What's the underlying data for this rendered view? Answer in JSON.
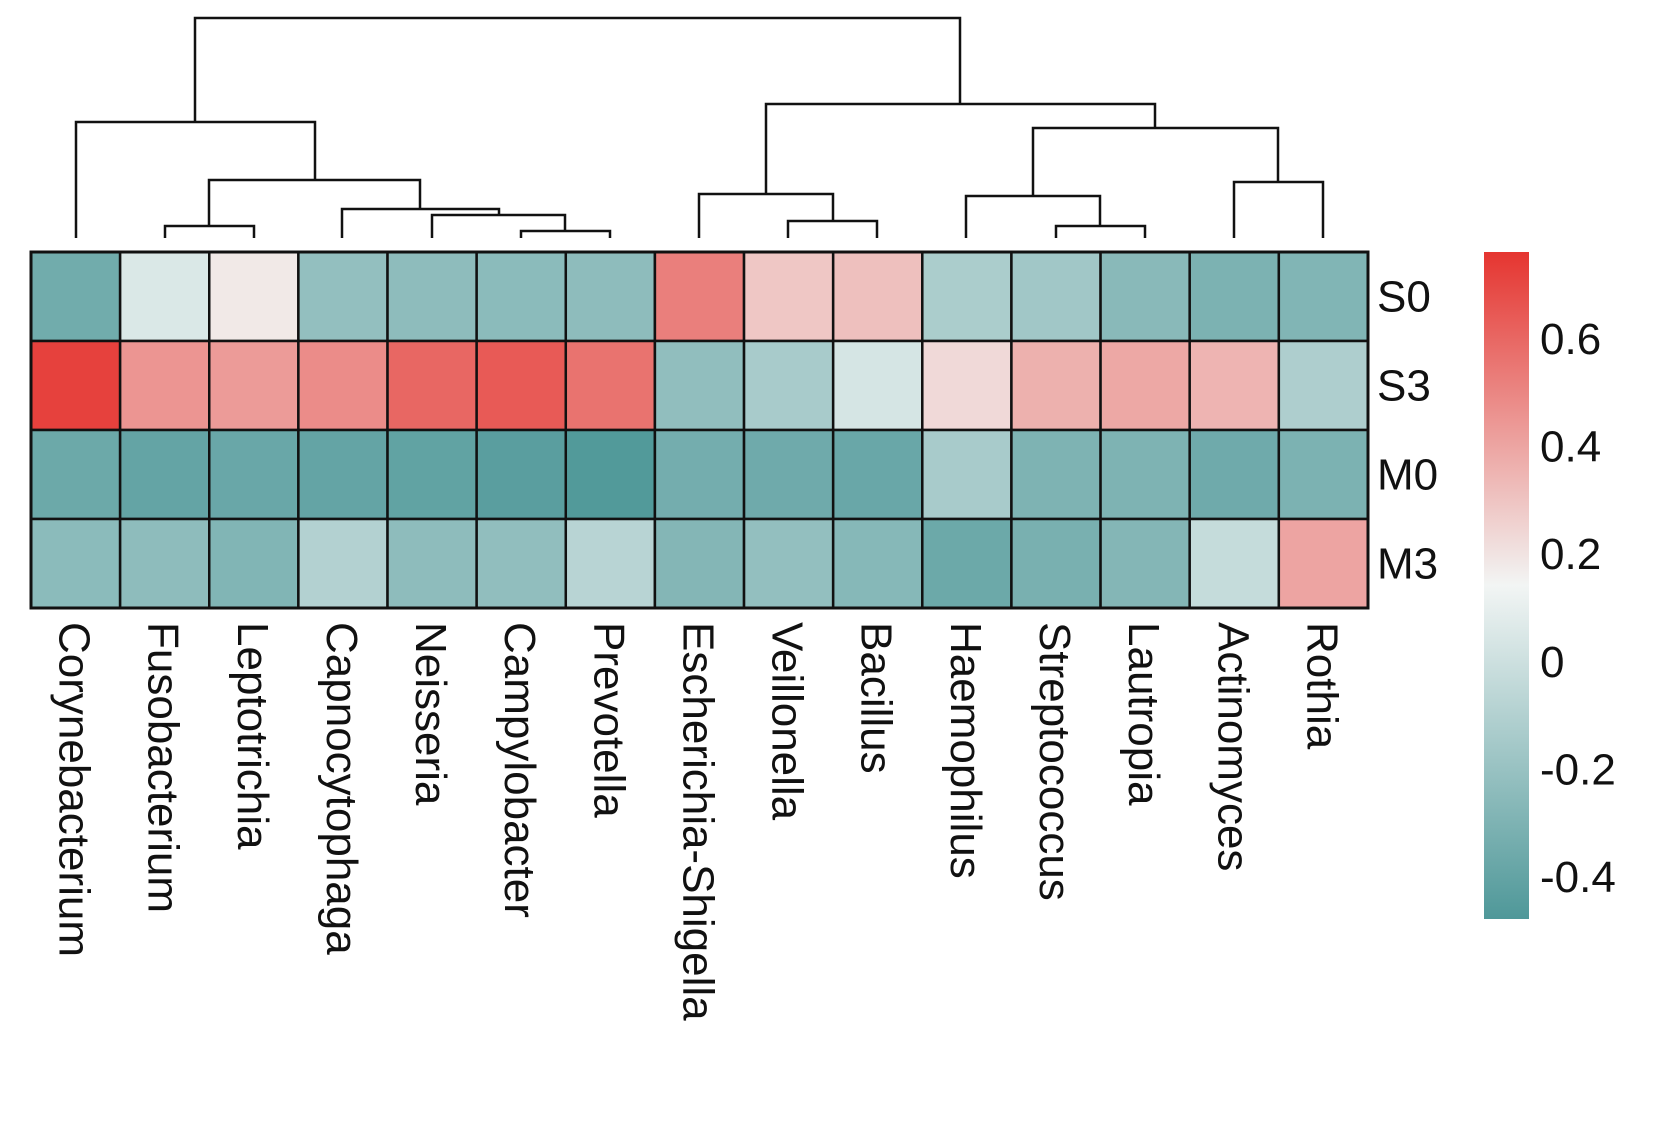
{
  "chart_data": {
    "type": "heatmap",
    "columns": [
      "Corynebacterium",
      "Fusobacterium",
      "Leptotrichia",
      "Capnocytophaga",
      "Neisseria",
      "Campylobacter",
      "Prevotella",
      "Escherichia-Shigella",
      "Veillonella",
      "Bacillus",
      "Haemophilus",
      "Streptococcus",
      "Lautropia",
      "Actinomyces",
      "Rothia"
    ],
    "rows": [
      "S0",
      "S3",
      "M0",
      "M3"
    ],
    "values": [
      [
        -0.35,
        0.05,
        0.18,
        -0.22,
        -0.24,
        -0.25,
        -0.24,
        0.52,
        0.29,
        0.31,
        -0.13,
        -0.17,
        -0.26,
        -0.31,
        -0.29
      ],
      [
        0.72,
        0.45,
        0.43,
        0.48,
        0.6,
        0.64,
        0.56,
        -0.23,
        -0.14,
        0.03,
        0.23,
        0.36,
        0.39,
        0.35,
        -0.12
      ],
      [
        -0.37,
        -0.4,
        -0.38,
        -0.4,
        -0.41,
        -0.44,
        -0.47,
        -0.34,
        -0.36,
        -0.38,
        -0.14,
        -0.3,
        -0.3,
        -0.36,
        -0.31
      ],
      [
        -0.25,
        -0.24,
        -0.29,
        -0.1,
        -0.24,
        -0.23,
        -0.08,
        -0.28,
        -0.22,
        -0.27,
        -0.37,
        -0.32,
        -0.28,
        -0.03,
        0.4
      ]
    ],
    "colorbar": {
      "min": -0.48,
      "max": 0.76,
      "ticks": [
        -0.4,
        -0.2,
        0,
        0.2,
        0.4,
        0.6
      ],
      "tick_labels": [
        "-0.4",
        "-0.2",
        "0",
        "0.2",
        "0.4",
        "0.6"
      ],
      "colors": [
        "#4f9899",
        "#f2f5f4",
        "#e53530"
      ],
      "position": "right"
    },
    "dendrogram": "columns, top",
    "grid": true
  }
}
